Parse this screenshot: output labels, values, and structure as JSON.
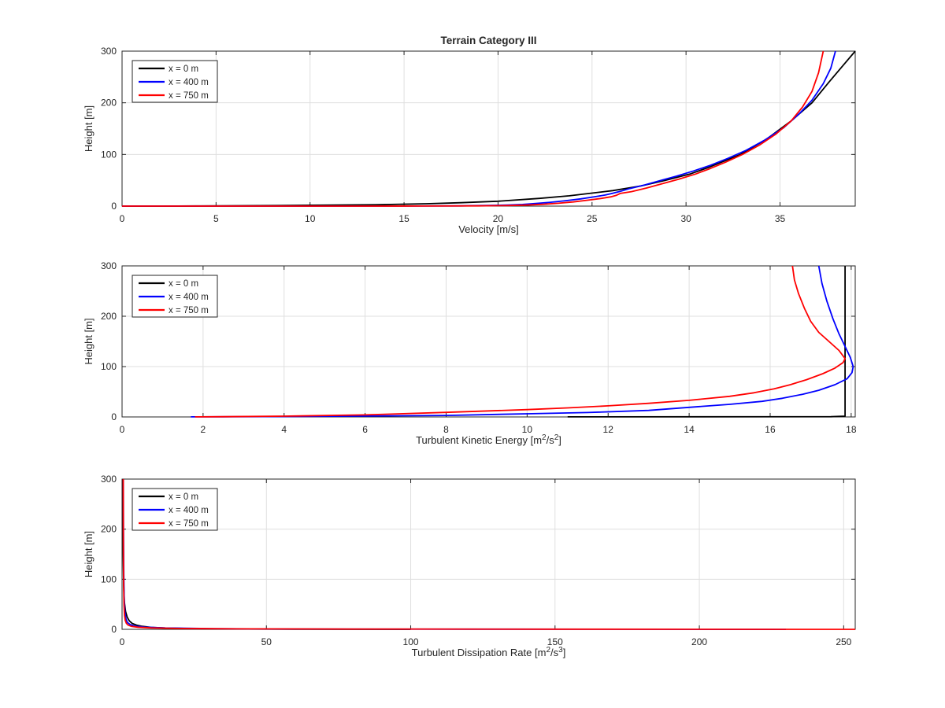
{
  "figure": {
    "background": "#ffffff",
    "title": "Terrain Category III"
  },
  "chart_data": [
    {
      "type": "line",
      "title": "Terrain Category III",
      "xlabel": "Velocity [m/s]",
      "xlabel_parts": [
        {
          "t": "Velocity [m/s]",
          "sup": false
        }
      ],
      "ylabel": "Height [m]",
      "xlim": [
        0,
        39
      ],
      "ylim": [
        0,
        300
      ],
      "xticks": [
        0,
        5,
        10,
        15,
        20,
        25,
        30,
        35
      ],
      "yticks": [
        0,
        100,
        200,
        300
      ],
      "grid": true,
      "legend": {
        "position": "top-left",
        "entries": [
          {
            "label": "x = 0 m",
            "color": "#000000"
          },
          {
            "label": "x = 400 m",
            "color": "#0000ff"
          },
          {
            "label": "x = 750 m",
            "color": "#ff0000"
          }
        ]
      },
      "series": [
        {
          "name": "x = 0 m",
          "color": "#000000",
          "points": [
            [
              0,
              0
            ],
            [
              2,
              0.05
            ],
            [
              3.9,
              0.3
            ],
            [
              8.3,
              1
            ],
            [
              11.5,
              2
            ],
            [
              13.5,
              2.6
            ],
            [
              16.2,
              4.5
            ],
            [
              18,
              6.5
            ],
            [
              20,
              9.5
            ],
            [
              22.2,
              15
            ],
            [
              23.8,
              20
            ],
            [
              26.1,
              30
            ],
            [
              27.6,
              39
            ],
            [
              28.9,
              50
            ],
            [
              30.2,
              62
            ],
            [
              31.2,
              75
            ],
            [
              32.9,
              100
            ],
            [
              34.3,
              130
            ],
            [
              35.6,
              165
            ],
            [
              36.7,
              200
            ],
            [
              37.6,
              240
            ],
            [
              38.3,
              270
            ],
            [
              39,
              300
            ]
          ]
        },
        {
          "name": "x = 400 m",
          "color": "#0000ff",
          "points": [
            [
              0,
              0
            ],
            [
              10,
              0.05
            ],
            [
              15,
              0.1
            ],
            [
              18,
              0.5
            ],
            [
              19.5,
              1.2
            ],
            [
              20.5,
              2
            ],
            [
              21.3,
              3.2
            ],
            [
              22,
              5
            ],
            [
              22.8,
              7.5
            ],
            [
              23.6,
              10.5
            ],
            [
              24.4,
              14
            ],
            [
              25.2,
              18.5
            ],
            [
              25.7,
              21.5
            ],
            [
              26,
              24
            ],
            [
              26.5,
              28.5
            ],
            [
              27,
              34
            ],
            [
              27.8,
              41
            ],
            [
              28.6,
              49
            ],
            [
              29.5,
              58
            ],
            [
              30.4,
              68
            ],
            [
              31.3,
              79
            ],
            [
              32.2,
              92
            ],
            [
              33.2,
              108
            ],
            [
              34.2,
              128
            ],
            [
              35.2,
              152
            ],
            [
              36,
              178
            ],
            [
              36.7,
              205
            ],
            [
              37.3,
              237
            ],
            [
              37.7,
              267
            ],
            [
              37.95,
              300
            ]
          ]
        },
        {
          "name": "x = 750 m",
          "color": "#ff0000",
          "points": [
            [
              0,
              0
            ],
            [
              12,
              0.05
            ],
            [
              16,
              0.1
            ],
            [
              19,
              0.4
            ],
            [
              20.5,
              1
            ],
            [
              21.5,
              2
            ],
            [
              22.4,
              3.5
            ],
            [
              23.2,
              5.5
            ],
            [
              24,
              8
            ],
            [
              24.8,
              11.5
            ],
            [
              25.5,
              15
            ],
            [
              26,
              18
            ],
            [
              26.3,
              21
            ],
            [
              26.5,
              24.5
            ],
            [
              27.1,
              28
            ],
            [
              27.9,
              35
            ],
            [
              28.7,
              43
            ],
            [
              29.6,
              52
            ],
            [
              30.5,
              62
            ],
            [
              31.3,
              73
            ],
            [
              32.1,
              85
            ],
            [
              33,
              100
            ],
            [
              33.9,
              118
            ],
            [
              34.8,
              140
            ],
            [
              35.6,
              165
            ],
            [
              36.2,
              192
            ],
            [
              36.7,
              222
            ],
            [
              37.05,
              258
            ],
            [
              37.3,
              300
            ]
          ]
        }
      ]
    },
    {
      "type": "line",
      "title": "",
      "xlabel": "Turbulent Kinetic Energy [m2/s2]",
      "xlabel_parts": [
        {
          "t": "Turbulent Kinetic Energy [m",
          "sup": false
        },
        {
          "t": "2",
          "sup": true
        },
        {
          "t": "/s",
          "sup": false
        },
        {
          "t": "2",
          "sup": true
        },
        {
          "t": "]",
          "sup": false
        }
      ],
      "ylabel": "Height [m]",
      "xlim": [
        0,
        18.1
      ],
      "ylim": [
        0,
        300
      ],
      "xticks": [
        0,
        2,
        4,
        6,
        8,
        10,
        12,
        14,
        16,
        18
      ],
      "yticks": [
        0,
        100,
        200,
        300
      ],
      "grid": true,
      "legend": {
        "position": "top-left",
        "entries": [
          {
            "label": "x = 0 m",
            "color": "#000000"
          },
          {
            "label": "x = 400 m",
            "color": "#0000ff"
          },
          {
            "label": "x = 750 m",
            "color": "#ff0000"
          }
        ]
      },
      "series": [
        {
          "name": "x = 0 m",
          "color": "#000000",
          "points": [
            [
              11,
              0.1
            ],
            [
              17.5,
              0.5
            ],
            [
              17.85,
              1.5
            ],
            [
              17.85,
              300
            ]
          ]
        },
        {
          "name": "x = 400 m",
          "color": "#0000ff",
          "points": [
            [
              1.7,
              0.1
            ],
            [
              2.5,
              0.3
            ],
            [
              4,
              0.8
            ],
            [
              6,
              1.8
            ],
            [
              8,
              3
            ],
            [
              10,
              6.3
            ],
            [
              11.5,
              8.8
            ],
            [
              13,
              13
            ],
            [
              14,
              19
            ],
            [
              15,
              25
            ],
            [
              15.8,
              31
            ],
            [
              16.3,
              37
            ],
            [
              16.8,
              45
            ],
            [
              17.2,
              53
            ],
            [
              17.6,
              64
            ],
            [
              17.9,
              76
            ],
            [
              18.02,
              88
            ],
            [
              18.05,
              100
            ],
            [
              17.98,
              118
            ],
            [
              17.85,
              140
            ],
            [
              17.7,
              165
            ],
            [
              17.55,
              195
            ],
            [
              17.4,
              230
            ],
            [
              17.28,
              265
            ],
            [
              17.2,
              300
            ]
          ]
        },
        {
          "name": "x = 750 m",
          "color": "#ff0000",
          "points": [
            [
              1.8,
              0.15
            ],
            [
              2.5,
              0.5
            ],
            [
              4,
              1.5
            ],
            [
              6,
              4
            ],
            [
              8,
              9
            ],
            [
              10,
              14.5
            ],
            [
              11,
              18
            ],
            [
              12,
              22
            ],
            [
              13,
              27
            ],
            [
              14,
              33
            ],
            [
              15,
              41
            ],
            [
              15.6,
              48
            ],
            [
              16.1,
              56
            ],
            [
              16.5,
              64
            ],
            [
              16.9,
              74
            ],
            [
              17.3,
              86
            ],
            [
              17.6,
              97
            ],
            [
              17.8,
              108
            ],
            [
              17.85,
              116
            ],
            [
              17.7,
              132
            ],
            [
              17.45,
              150
            ],
            [
              17.2,
              168
            ],
            [
              17,
              190
            ],
            [
              16.85,
              215
            ],
            [
              16.7,
              245
            ],
            [
              16.6,
              272
            ],
            [
              16.55,
              300
            ]
          ]
        }
      ]
    },
    {
      "type": "line",
      "title": "",
      "xlabel": "Turbulent Dissipation Rate [m2/s3]",
      "xlabel_parts": [
        {
          "t": "Turbulent Dissipation Rate [m",
          "sup": false
        },
        {
          "t": "2",
          "sup": true
        },
        {
          "t": "/s",
          "sup": false
        },
        {
          "t": "3",
          "sup": true
        },
        {
          "t": "]",
          "sup": false
        }
      ],
      "ylabel": "Height [m]",
      "xlim": [
        0,
        254
      ],
      "ylim": [
        0,
        300
      ],
      "xticks": [
        0,
        50,
        100,
        150,
        200,
        250
      ],
      "yticks": [
        0,
        100,
        200,
        300
      ],
      "grid": true,
      "legend": {
        "position": "top-left",
        "entries": [
          {
            "label": "x = 0 m",
            "color": "#000000"
          },
          {
            "label": "x = 400 m",
            "color": "#0000ff"
          },
          {
            "label": "x = 750 m",
            "color": "#ff0000"
          }
        ]
      },
      "series": [
        {
          "name": "x = 0 m",
          "color": "#000000",
          "points": [
            [
              100,
              0.05
            ],
            [
              60,
              0.3
            ],
            [
              35,
              0.8
            ],
            [
              23,
              1.5
            ],
            [
              15,
              2.5
            ],
            [
              10,
              4
            ],
            [
              7,
              6
            ],
            [
              5,
              8.5
            ],
            [
              3.5,
              12
            ],
            [
              2.5,
              17
            ],
            [
              1.8,
              24
            ],
            [
              1.2,
              36
            ],
            [
              0.8,
              55
            ],
            [
              0.55,
              90
            ],
            [
              0.4,
              150
            ],
            [
              0.3,
              300
            ]
          ]
        },
        {
          "name": "x = 400 m",
          "color": "#0000ff",
          "points": [
            [
              230,
              0.05
            ],
            [
              120,
              0.3
            ],
            [
              60,
              0.7
            ],
            [
              30,
              1.4
            ],
            [
              15,
              2.6
            ],
            [
              8,
              4.2
            ],
            [
              4.5,
              6.5
            ],
            [
              2.8,
              9.5
            ],
            [
              1.8,
              14
            ],
            [
              1.3,
              22
            ],
            [
              0.95,
              35
            ],
            [
              0.75,
              60
            ],
            [
              0.6,
              110
            ],
            [
              0.5,
              200
            ],
            [
              0.45,
              300
            ]
          ]
        },
        {
          "name": "x = 750 m",
          "color": "#ff0000",
          "points": [
            [
              254,
              0.05
            ],
            [
              150,
              0.25
            ],
            [
              80,
              0.55
            ],
            [
              40,
              1
            ],
            [
              20,
              1.8
            ],
            [
              10,
              2.8
            ],
            [
              5.5,
              4.2
            ],
            [
              3.2,
              6
            ],
            [
              2.1,
              8.5
            ],
            [
              1.5,
              12
            ],
            [
              1.1,
              18
            ],
            [
              0.85,
              28
            ],
            [
              0.68,
              48
            ],
            [
              0.55,
              90
            ],
            [
              0.47,
              170
            ],
            [
              0.42,
              300
            ]
          ]
        }
      ]
    }
  ]
}
